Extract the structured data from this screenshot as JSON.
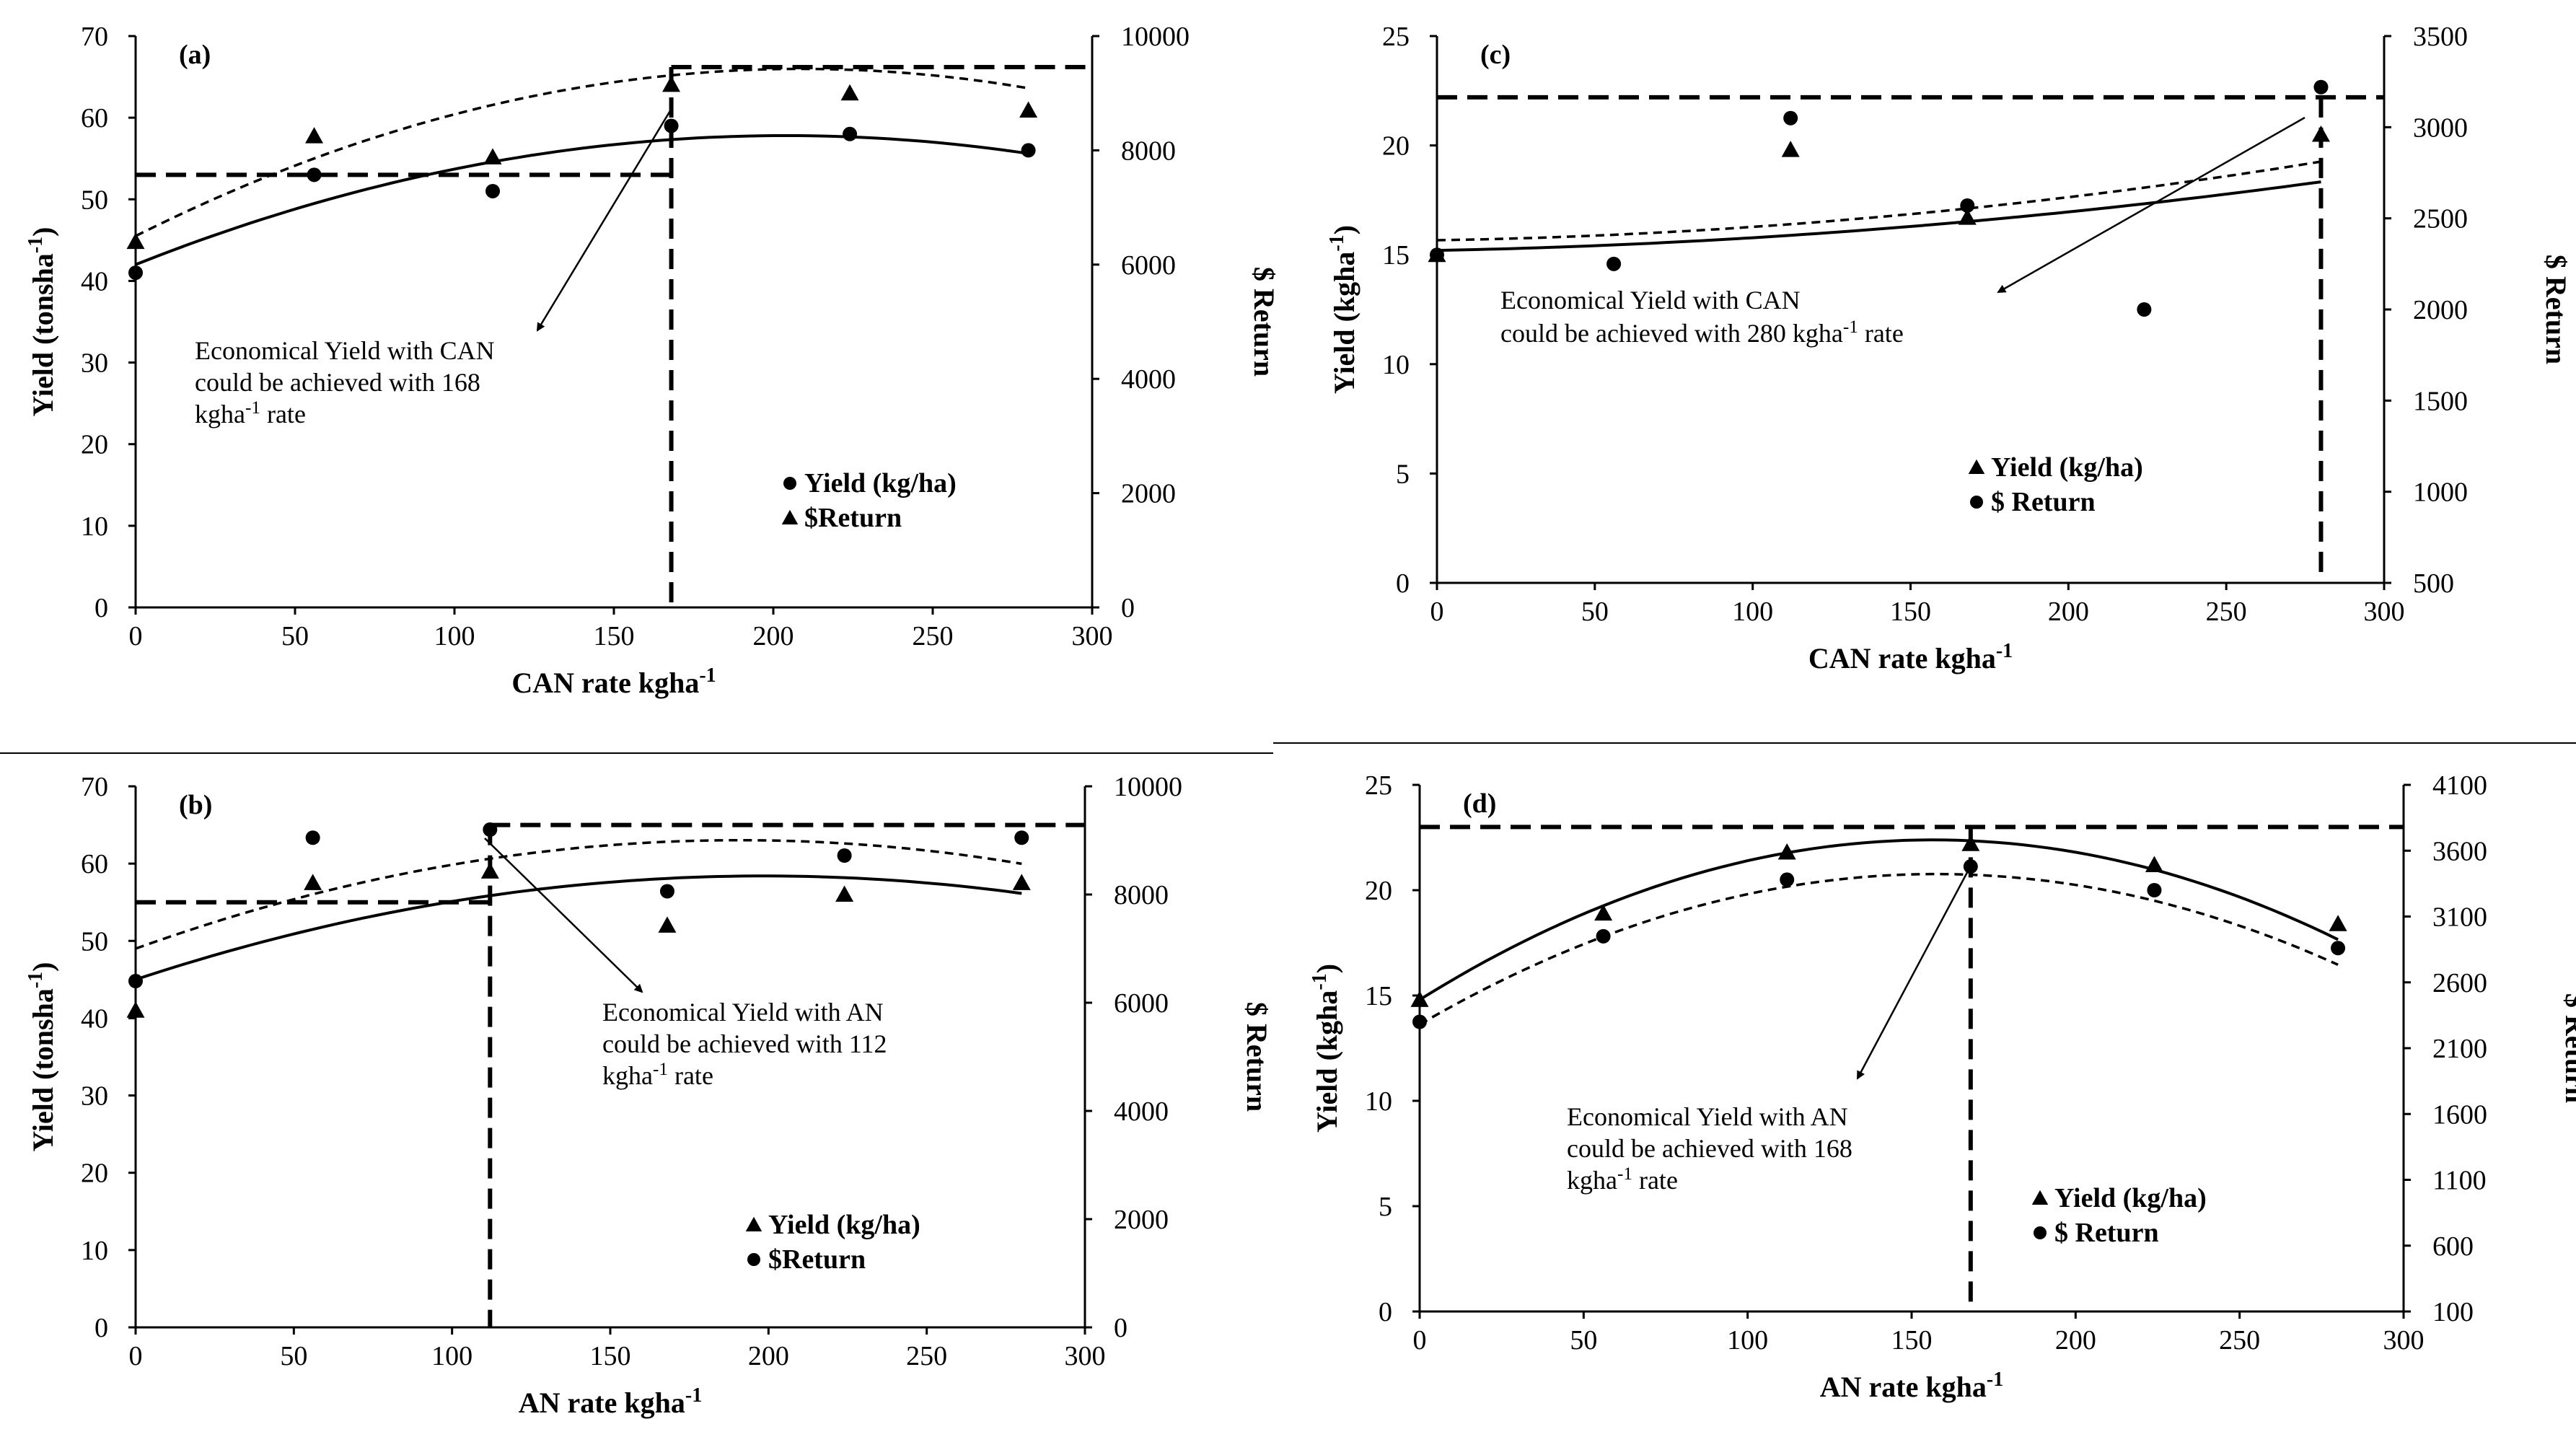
{
  "chart_data": [
    {
      "panel": "(a)",
      "type": "scatter",
      "xlabel": "CAN rate kgha-1",
      "ylabel": "Yield (tonsha-1)",
      "y2label": "$ Return",
      "xlim": [
        0,
        300
      ],
      "xticks": [
        0,
        50,
        100,
        150,
        200,
        250,
        300
      ],
      "ylim": [
        0,
        70
      ],
      "yticks": [
        0,
        10,
        20,
        30,
        40,
        50,
        60,
        70
      ],
      "y2lim": [
        0,
        10000
      ],
      "y2ticks": [
        0,
        2000,
        4000,
        6000,
        8000,
        10000
      ],
      "series": [
        {
          "name": "Yield (kg/ha)",
          "marker": "circle",
          "axis": "left",
          "x": [
            0,
            56,
            112,
            168,
            224,
            280
          ],
          "y": [
            41,
            53,
            51,
            59,
            58,
            56
          ],
          "trend": {
            "style": "solid",
            "coef": [
              42.0,
              0.155,
              -0.00038
            ]
          }
        },
        {
          "name": "$Return",
          "marker": "triangle",
          "axis": "right",
          "x": [
            0,
            56,
            112,
            168,
            224,
            280
          ],
          "y": [
            6400,
            8250,
            7880,
            9150,
            9000,
            8700
          ],
          "trend": {
            "style": "dashed",
            "coef": [
              6500,
              28.0,
              -0.067
            ]
          }
        }
      ],
      "legend": [
        "Yield (kg/ha)",
        "$Return"
      ],
      "annotation": {
        "lines": [
          "Economical Yield with CAN",
          "could be achieved with 168",
          "kgha-1 rate"
        ],
        "optimum_rate": 168
      },
      "guides": {
        "h_left": {
          "axis": "left",
          "y": 53,
          "x": [
            0,
            168
          ]
        },
        "h_right": {
          "axis": "left",
          "y": 66.2,
          "x": [
            168,
            300
          ]
        },
        "v": {
          "x": 168
        }
      }
    },
    {
      "panel": "(b)",
      "type": "scatter",
      "xlabel": "AN rate kgha-1",
      "ylabel": "Yield (tonsha-1)",
      "y2label": "$ Return",
      "xlim": [
        0,
        300
      ],
      "xticks": [
        0,
        50,
        100,
        150,
        200,
        250,
        300
      ],
      "ylim": [
        0,
        70
      ],
      "yticks": [
        0,
        10,
        20,
        30,
        40,
        50,
        60,
        70
      ],
      "y2lim": [
        0,
        10000
      ],
      "y2ticks": [
        0,
        2000,
        4000,
        6000,
        8000,
        10000
      ],
      "series": [
        {
          "name": "Yield (kg/ha)",
          "marker": "triangle",
          "axis": "left",
          "x": [
            0,
            56,
            112,
            168,
            224,
            280
          ],
          "y": [
            41,
            57.5,
            59,
            52,
            56,
            57.5
          ],
          "trend": {
            "style": "solid",
            "coef": [
              45.0,
              0.135,
              -0.00034
            ]
          }
        },
        {
          "name": "$Return",
          "marker": "circle",
          "axis": "right",
          "x": [
            0,
            56,
            112,
            168,
            224,
            280
          ],
          "y": [
            6400,
            9050,
            9200,
            8060,
            8720,
            9050
          ],
          "trend": {
            "style": "dashed",
            "coef": [
              7000,
              21.0,
              -0.055
            ]
          }
        }
      ],
      "legend": [
        "Yield (kg/ha)",
        "$Return"
      ],
      "annotation": {
        "lines": [
          "Economical Yield with AN",
          "could be achieved with 112",
          "kgha-1 rate"
        ],
        "optimum_rate": 112
      },
      "guides": {
        "h_left": {
          "axis": "left",
          "y": 55,
          "x": [
            0,
            112
          ]
        },
        "h_right": {
          "axis": "left",
          "y": 65,
          "x": [
            112,
            300
          ]
        },
        "v": {
          "x": 112
        }
      }
    },
    {
      "panel": "(c)",
      "type": "scatter",
      "xlabel": "CAN rate kgha-1",
      "ylabel": "Yield (kgha-1)",
      "y2label": "$ Return",
      "xlim": [
        0,
        300
      ],
      "xticks": [
        0,
        50,
        100,
        150,
        200,
        250,
        300
      ],
      "ylim": [
        0,
        25
      ],
      "yticks": [
        0,
        5,
        10,
        15,
        20,
        25
      ],
      "y2lim": [
        500,
        3500
      ],
      "y2ticks": [
        500,
        1000,
        1500,
        2000,
        2500,
        3000,
        3500
      ],
      "series": [
        {
          "name": "Yield (kg/ha)",
          "marker": "triangle",
          "axis": "left",
          "x": [
            0,
            112,
            168,
            280
          ],
          "y": [
            15,
            19.8,
            16.7,
            20.5
          ],
          "trend": {
            "style": "solid",
            "coef": [
              15.2,
              0.0028,
              3e-05
            ]
          }
        },
        {
          "name": "$ Return",
          "marker": "circle",
          "axis": "right",
          "x": [
            0,
            56,
            112,
            168,
            224,
            280
          ],
          "y": [
            2300,
            2250,
            3050,
            2570,
            2000,
            3220
          ],
          "trend": {
            "style": "dashed",
            "coef": [
              2380,
              0.28,
              0.0045
            ]
          }
        }
      ],
      "legend": [
        "Yield (kg/ha)",
        "$ Return"
      ],
      "annotation": {
        "lines": [
          "Economical Yield with CAN",
          "could be achieved with 280 kgha-1 rate"
        ],
        "optimum_rate": 280
      },
      "guides": {
        "h_left": {
          "axis": "left",
          "y": 22.2,
          "x": [
            0,
            300
          ]
        },
        "v": {
          "x": 280
        }
      }
    },
    {
      "panel": "(d)",
      "type": "scatter",
      "xlabel": "AN rate kgha-1",
      "ylabel": "Yield (kgha-1)",
      "y2label": "$ Return",
      "xlim": [
        0,
        300
      ],
      "xticks": [
        0,
        50,
        100,
        150,
        200,
        250,
        300
      ],
      "ylim": [
        0,
        25
      ],
      "yticks": [
        0,
        5,
        10,
        15,
        20,
        25
      ],
      "y2lim": [
        100,
        4100
      ],
      "y2ticks": [
        100,
        600,
        1100,
        1600,
        2100,
        2600,
        3100,
        3600,
        4100
      ],
      "series": [
        {
          "name": "Yield (kg/ha)",
          "marker": "triangle",
          "axis": "left",
          "x": [
            0,
            56,
            112,
            168,
            224,
            280
          ],
          "y": [
            14.8,
            18.9,
            21.8,
            22.2,
            21.2,
            18.4
          ],
          "trend": {
            "style": "solid",
            "coef": [
              14.8,
              0.097,
              -0.00031
            ]
          }
        },
        {
          "name": "$ Return",
          "marker": "circle",
          "axis": "right",
          "x": [
            0,
            56,
            112,
            168,
            224,
            280
          ],
          "y": [
            2300,
            2950,
            3380,
            3480,
            3300,
            2860
          ],
          "trend": {
            "style": "dashed",
            "coef": [
              2280,
              14.5,
              -0.046
            ]
          }
        }
      ],
      "legend": [
        "Yield (kg/ha)",
        "$ Return"
      ],
      "annotation": {
        "lines": [
          "Economical Yield with AN",
          "could be achieved with 168",
          "kgha-1 rate"
        ],
        "optimum_rate": 168
      },
      "guides": {
        "h_left": {
          "axis": "left",
          "y": 23,
          "x": [
            0,
            300
          ]
        },
        "v": {
          "x": 168
        }
      }
    }
  ]
}
